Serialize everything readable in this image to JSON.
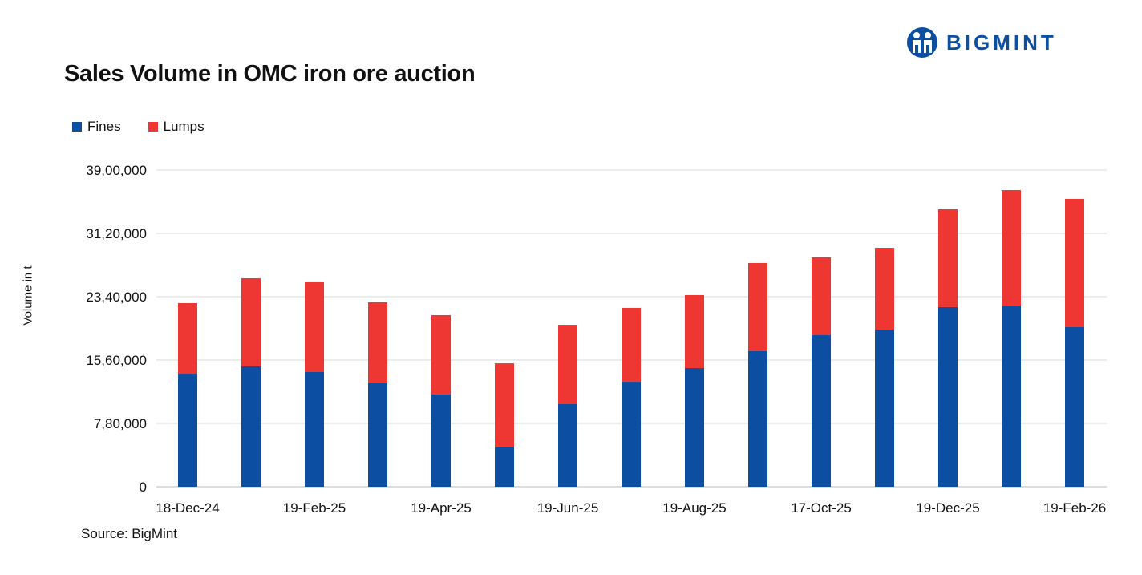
{
  "brand": {
    "name": "BIGMINT",
    "color": "#0b4ea2"
  },
  "source": "Source: BigMint",
  "chart_data": {
    "type": "bar",
    "stacked": true,
    "title": "Sales Volume in OMC iron ore auction",
    "xlabel": "",
    "ylabel": "Volume in t",
    "ylim": [
      0,
      3900000
    ],
    "yticks": [
      "0",
      "7,80,000",
      "15,60,000",
      "23,40,000",
      "31,20,000",
      "39,00,000"
    ],
    "grid": true,
    "legend_position": "top-left",
    "categories": [
      "18-Dec-24",
      "",
      "19-Feb-25",
      "",
      "19-Apr-25",
      "",
      "19-Jun-25",
      "",
      "19-Aug-25",
      "",
      "17-Oct-25",
      "",
      "19-Dec-25",
      "",
      "19-Feb-26"
    ],
    "series": [
      {
        "name": "Fines",
        "color": "#0b4ea2",
        "values": [
          1392000,
          1481000,
          1412000,
          1274000,
          1135000,
          494000,
          1017000,
          1293000,
          1461000,
          1669000,
          1866000,
          1935000,
          2212000,
          2231000,
          1965000
        ]
      },
      {
        "name": "Lumps",
        "color": "#ee3732",
        "values": [
          869000,
          1086000,
          1106000,
          997000,
          978000,
          1026000,
          977000,
          909000,
          899000,
          1086000,
          958000,
          1007000,
          1204000,
          1422000,
          1580000
        ]
      }
    ]
  }
}
